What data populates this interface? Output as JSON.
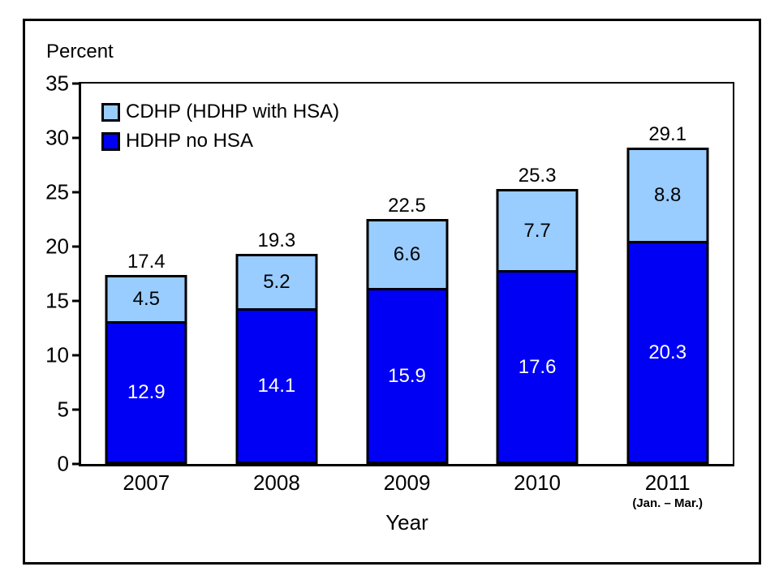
{
  "figure": {
    "background": "#FFFFFF",
    "border_color": "#000000"
  },
  "chart_data": {
    "type": "bar",
    "stacked": true,
    "ylabel": "Percent",
    "xlabel": "Year",
    "ylim": [
      0,
      35
    ],
    "ytick_step": 5,
    "ytick_labels": [
      "0",
      "5",
      "10",
      "15",
      "20",
      "25",
      "30",
      "35"
    ],
    "categories": [
      "2007",
      "2008",
      "2009",
      "2010",
      "2011"
    ],
    "category_sublabels": [
      "",
      "",
      "",
      "",
      "(Jan. – Mar.)"
    ],
    "series": [
      {
        "name": "HDHP no HSA",
        "color": "#0000F5",
        "label_color": "#FFFFFF",
        "values": [
          12.9,
          14.1,
          15.9,
          17.6,
          20.3
        ]
      },
      {
        "name": "CDHP (HDHP with HSA)",
        "color": "#99CCFF",
        "label_color": "#000000",
        "values": [
          4.5,
          5.2,
          6.6,
          7.7,
          8.8
        ]
      }
    ],
    "totals": [
      17.4,
      19.3,
      22.5,
      25.3,
      29.1
    ],
    "legend_position": "top-left-inside",
    "grid": false
  }
}
